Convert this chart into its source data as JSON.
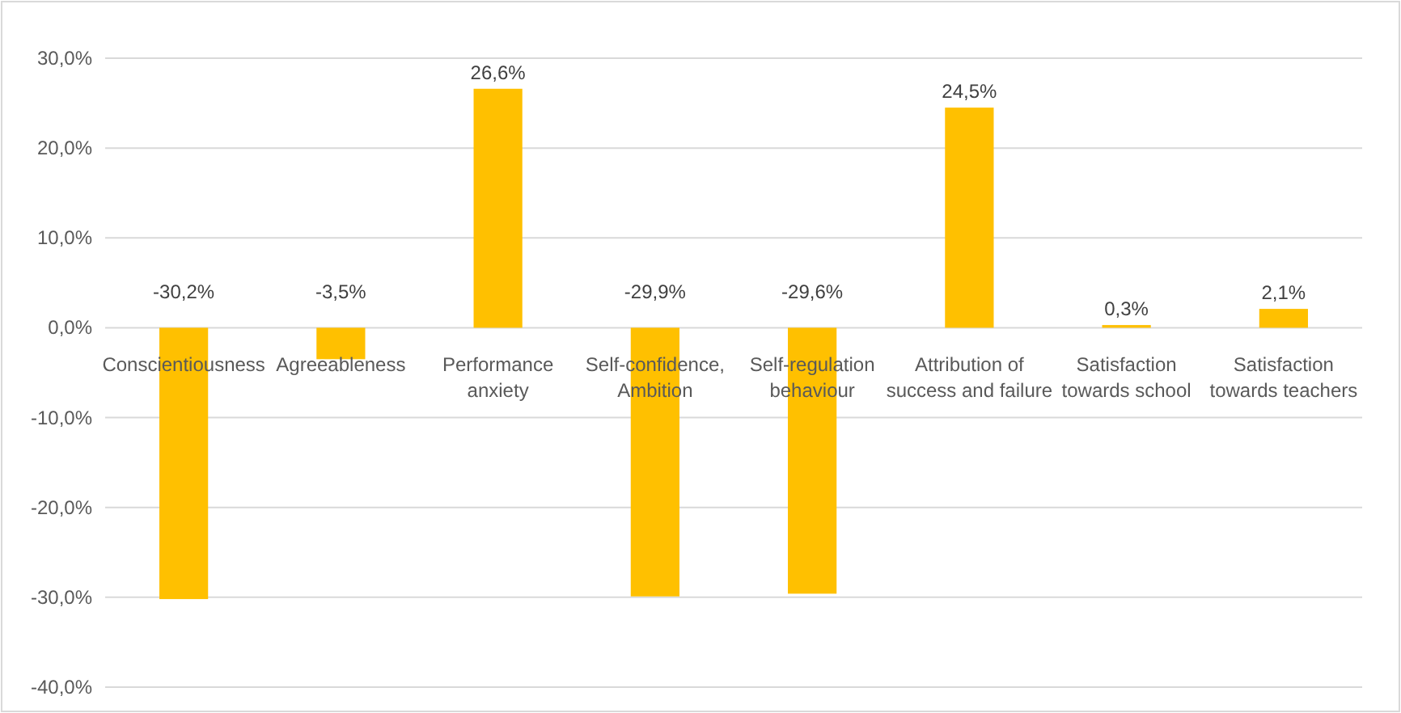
{
  "chart_data": {
    "type": "bar",
    "categories": [
      "Conscientiousness",
      "Agreeableness",
      "Performance anxiety",
      "Self-confidence, Ambition",
      "Self-regulation behaviour",
      "Attribution of success and failure",
      "Satisfaction towards school",
      "Satisfaction towards teachers"
    ],
    "values": [
      -30.2,
      -3.5,
      26.6,
      -29.9,
      -29.6,
      24.5,
      0.3,
      2.1
    ],
    "value_labels": [
      "-30,2%",
      "-3,5%",
      "26,6%",
      "-29,9%",
      "-29,6%",
      "24,5%",
      "0,3%",
      "2,1%"
    ],
    "color": "#ffc000",
    "ylim": [
      -40,
      30
    ],
    "yticks": [
      {
        "value": 30,
        "label": "30,0%"
      },
      {
        "value": 20,
        "label": "20,0%"
      },
      {
        "value": 10,
        "label": "10,0%"
      },
      {
        "value": 0,
        "label": "0,0%"
      },
      {
        "value": -10,
        "label": "-10,0%"
      },
      {
        "value": -20,
        "label": "-20,0%"
      },
      {
        "value": -30,
        "label": "-30,0%"
      },
      {
        "value": -40,
        "label": "-40,0%"
      }
    ],
    "grid": "y"
  }
}
